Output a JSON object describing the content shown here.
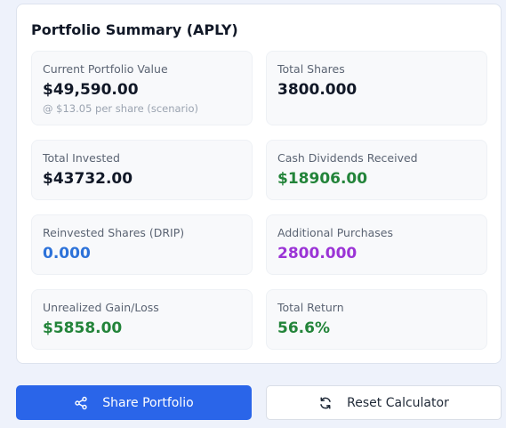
{
  "summary": {
    "title": "Portfolio Summary (APLY)",
    "tiles": [
      {
        "label": "Current Portfolio Value",
        "value": "$49,590.00",
        "sub": "@ $13.05 per share (scenario)"
      },
      {
        "label": "Total Shares",
        "value": "3800.000"
      },
      {
        "label": "Total Invested",
        "value": "$43732.00"
      },
      {
        "label": "Cash Dividends Received",
        "value": "$18906.00"
      },
      {
        "label": "Reinvested Shares (DRIP)",
        "value": "0.000"
      },
      {
        "label": "Additional Purchases",
        "value": "2800.000"
      },
      {
        "label": "Unrealized Gain/Loss",
        "value": "$5858.00"
      },
      {
        "label": "Total Return",
        "value": "56.6%"
      }
    ]
  },
  "actions": {
    "share_label": "Share Portfolio",
    "reset_label": "Reset Calculator"
  },
  "colors": {
    "green": "#23843a",
    "blue": "#2d72d9",
    "purple": "#9b34d6",
    "primary": "#2a65e9"
  },
  "icons": {
    "share": "share-icon",
    "reset": "refresh-icon"
  }
}
